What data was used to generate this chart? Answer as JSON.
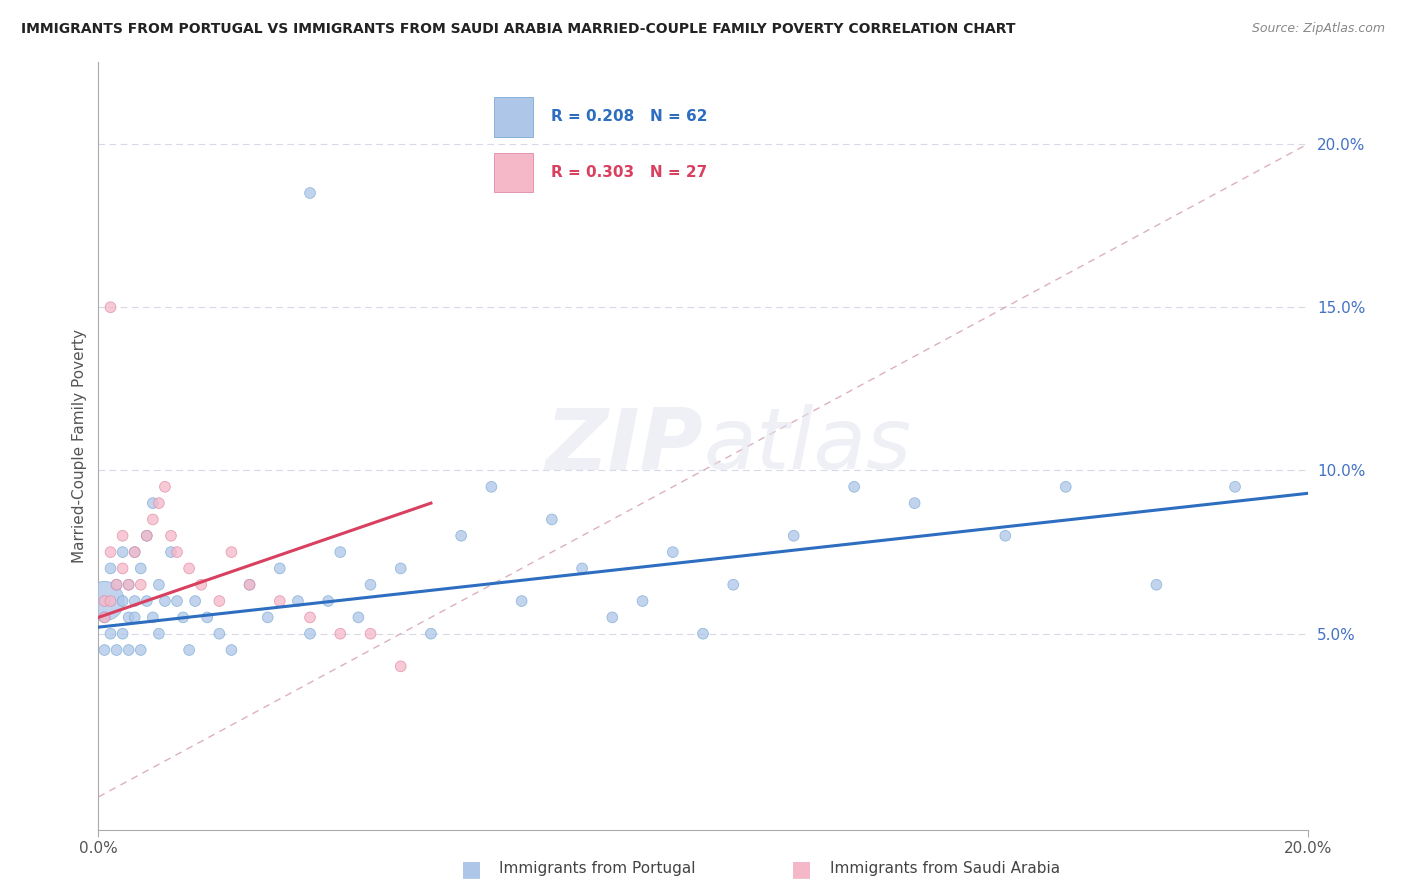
{
  "title": "IMMIGRANTS FROM PORTUGAL VS IMMIGRANTS FROM SAUDI ARABIA MARRIED-COUPLE FAMILY POVERTY CORRELATION CHART",
  "source": "Source: ZipAtlas.com",
  "ylabel": "Married-Couple Family Poverty",
  "legend_portugal": "R = 0.208   N = 62",
  "legend_saudi": "R = 0.303   N = 27",
  "legend_label_portugal": "Immigrants from Portugal",
  "legend_label_saudi": "Immigrants from Saudi Arabia",
  "watermark_zip": "ZIP",
  "watermark_atlas": "atlas",
  "portugal_color": "#aec6e8",
  "portugal_edge_color": "#7aaad4",
  "saudi_color": "#f4b8c8",
  "saudi_edge_color": "#e088a8",
  "portugal_line_color": "#2e6ec0",
  "saudi_line_color": "#d94060",
  "diag_line_color": "#d8a8b8",
  "grid_color": "#d8d8e8",
  "ytick_color": "#4472c4",
  "xlim": [
    0.0,
    0.2
  ],
  "ylim": [
    -0.01,
    0.225
  ],
  "ytick_values": [
    0.05,
    0.1,
    0.15,
    0.2
  ],
  "ytick_labels": [
    "5.0%",
    "10.0%",
    "15.0%",
    "20.0%"
  ],
  "portugal_line_x": [
    0.0,
    0.2
  ],
  "portugal_line_y": [
    0.052,
    0.093
  ],
  "saudi_line_x": [
    0.0,
    0.055
  ],
  "saudi_line_y": [
    0.055,
    0.09
  ],
  "diag_line_x": [
    0.0,
    0.2
  ],
  "diag_line_y": [
    0.0,
    0.2
  ],
  "port_x": [
    0.001,
    0.001,
    0.001,
    0.002,
    0.002,
    0.003,
    0.003,
    0.004,
    0.004,
    0.004,
    0.005,
    0.005,
    0.005,
    0.006,
    0.006,
    0.006,
    0.007,
    0.007,
    0.008,
    0.008,
    0.009,
    0.009,
    0.01,
    0.01,
    0.011,
    0.012,
    0.013,
    0.014,
    0.015,
    0.016,
    0.018,
    0.02,
    0.022,
    0.025,
    0.028,
    0.03,
    0.033,
    0.035,
    0.038,
    0.04,
    0.043,
    0.045,
    0.05,
    0.055,
    0.06,
    0.065,
    0.07,
    0.075,
    0.08,
    0.085,
    0.09,
    0.095,
    0.1,
    0.105,
    0.115,
    0.125,
    0.135,
    0.15,
    0.16,
    0.175,
    0.188,
    0.035
  ],
  "port_y": [
    0.06,
    0.055,
    0.045,
    0.07,
    0.05,
    0.065,
    0.045,
    0.06,
    0.075,
    0.05,
    0.055,
    0.045,
    0.065,
    0.055,
    0.075,
    0.06,
    0.045,
    0.07,
    0.06,
    0.08,
    0.055,
    0.09,
    0.065,
    0.05,
    0.06,
    0.075,
    0.06,
    0.055,
    0.045,
    0.06,
    0.055,
    0.05,
    0.045,
    0.065,
    0.055,
    0.07,
    0.06,
    0.05,
    0.06,
    0.075,
    0.055,
    0.065,
    0.07,
    0.05,
    0.08,
    0.095,
    0.06,
    0.085,
    0.07,
    0.055,
    0.06,
    0.075,
    0.05,
    0.065,
    0.08,
    0.095,
    0.09,
    0.08,
    0.095,
    0.065,
    0.095,
    0.185
  ],
  "port_sizes": [
    800,
    60,
    60,
    60,
    60,
    60,
    60,
    60,
    60,
    60,
    60,
    60,
    60,
    60,
    60,
    60,
    60,
    60,
    60,
    60,
    60,
    60,
    60,
    60,
    60,
    60,
    60,
    60,
    60,
    60,
    60,
    60,
    60,
    60,
    60,
    60,
    60,
    60,
    60,
    60,
    60,
    60,
    60,
    60,
    60,
    60,
    60,
    60,
    60,
    60,
    60,
    60,
    60,
    60,
    60,
    60,
    60,
    60,
    60,
    60,
    60,
    60
  ],
  "saudi_x": [
    0.001,
    0.001,
    0.002,
    0.002,
    0.003,
    0.004,
    0.004,
    0.005,
    0.006,
    0.007,
    0.008,
    0.009,
    0.01,
    0.011,
    0.012,
    0.013,
    0.015,
    0.017,
    0.02,
    0.022,
    0.025,
    0.03,
    0.035,
    0.04,
    0.045,
    0.05,
    0.002
  ],
  "saudi_y": [
    0.06,
    0.055,
    0.06,
    0.075,
    0.065,
    0.07,
    0.08,
    0.065,
    0.075,
    0.065,
    0.08,
    0.085,
    0.09,
    0.095,
    0.08,
    0.075,
    0.07,
    0.065,
    0.06,
    0.075,
    0.065,
    0.06,
    0.055,
    0.05,
    0.05,
    0.04,
    0.15
  ],
  "saudi_sizes": [
    60,
    60,
    60,
    60,
    60,
    60,
    60,
    60,
    60,
    60,
    60,
    60,
    60,
    60,
    60,
    60,
    60,
    60,
    60,
    60,
    60,
    60,
    60,
    60,
    60,
    60,
    60
  ]
}
